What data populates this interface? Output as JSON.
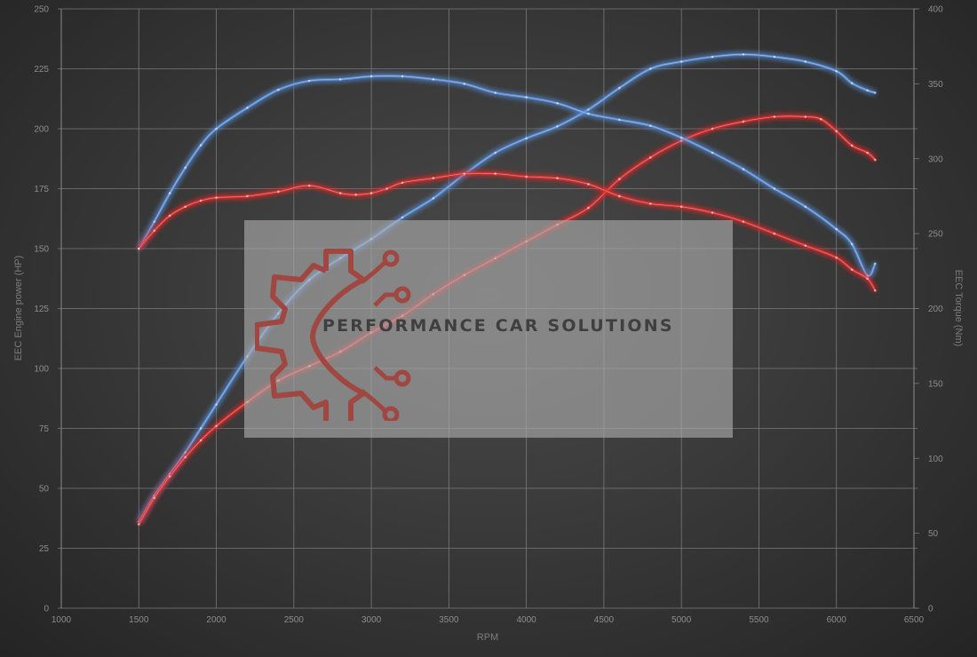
{
  "chart_data": {
    "type": "line",
    "xlabel": "RPM",
    "ylabel_left": "EEC Engine power (HP)",
    "ylabel_right": "EEC Torque (Nm)",
    "xlim": [
      1000,
      6500
    ],
    "ylim_left": [
      0,
      250
    ],
    "ylim_right": [
      0,
      400
    ],
    "x_ticks": [
      "1000",
      "1500",
      "2000",
      "2500",
      "3000",
      "3500",
      "4000",
      "4500",
      "5000",
      "5500",
      "6000",
      "6500"
    ],
    "y_ticks_left": [
      "0",
      "25",
      "50",
      "75",
      "100",
      "125",
      "150",
      "175",
      "200",
      "225",
      "250"
    ],
    "y_ticks_right": [
      "0",
      "50",
      "100",
      "150",
      "200",
      "250",
      "300",
      "350",
      "400"
    ],
    "grid": true,
    "series": [
      {
        "axis": "left",
        "color": "#5b8fd9",
        "x": [
          1500,
          1600,
          1700,
          1800,
          1900,
          2000,
          2200,
          2400,
          2600,
          2800,
          3000,
          3200,
          3400,
          3600,
          3800,
          4000,
          4200,
          4400,
          4600,
          4800,
          5000,
          5200,
          5400,
          5600,
          5800,
          6000,
          6100,
          6200,
          6250
        ],
        "y": [
          36,
          47,
          56,
          65,
          75,
          85,
          105,
          123,
          137,
          146,
          154,
          163,
          171,
          181,
          190,
          196,
          201,
          208,
          217,
          225,
          228,
          230,
          231,
          230,
          228,
          224,
          219,
          216,
          215
        ]
      },
      {
        "axis": "left",
        "color": "#e0302f",
        "x": [
          1500,
          1600,
          1700,
          1800,
          1900,
          2000,
          2200,
          2400,
          2600,
          2800,
          3000,
          3200,
          3400,
          3600,
          3800,
          4000,
          4200,
          4400,
          4600,
          4800,
          5000,
          5200,
          5400,
          5600,
          5800,
          5900,
          6000,
          6100,
          6200,
          6250
        ],
        "y": [
          35,
          46,
          55,
          63,
          70,
          76,
          86,
          95,
          101,
          107,
          115,
          122,
          131,
          139,
          146,
          153,
          160,
          167,
          179,
          188,
          195,
          200,
          203,
          205,
          205,
          204,
          199,
          193,
          190,
          187
        ]
      },
      {
        "axis": "right",
        "color": "#5b8fd9",
        "x": [
          1500,
          1600,
          1700,
          1800,
          1900,
          2000,
          2200,
          2400,
          2600,
          2800,
          3000,
          3200,
          3400,
          3600,
          3800,
          4000,
          4200,
          4400,
          4600,
          4800,
          5000,
          5200,
          5400,
          5600,
          5800,
          6000,
          6100,
          6200,
          6250
        ],
        "y": [
          240,
          258,
          277,
          294,
          309,
          320,
          334,
          346,
          352,
          353,
          355,
          355,
          353,
          350,
          344,
          341,
          337,
          330,
          326,
          322,
          314,
          304,
          293,
          280,
          268,
          253,
          243,
          222,
          230
        ]
      },
      {
        "axis": "right",
        "color": "#e0302f",
        "x": [
          1500,
          1600,
          1700,
          1800,
          1900,
          2000,
          2200,
          2400,
          2600,
          2800,
          2900,
          3000,
          3100,
          3200,
          3400,
          3600,
          3800,
          4000,
          4200,
          4400,
          4600,
          4800,
          5000,
          5200,
          5400,
          5600,
          5800,
          6000,
          6100,
          6200,
          6250
        ],
        "y": [
          240,
          252,
          262,
          268,
          272,
          274,
          275,
          278,
          282,
          277,
          276,
          277,
          280,
          284,
          287,
          290,
          290,
          288,
          287,
          283,
          275,
          270,
          268,
          264,
          258,
          250,
          242,
          234,
          226,
          220,
          212
        ]
      }
    ]
  },
  "watermark": {
    "text": "PERFORMANCE CAR SOLUTIONS",
    "logo": "gear-circuit-logo"
  }
}
